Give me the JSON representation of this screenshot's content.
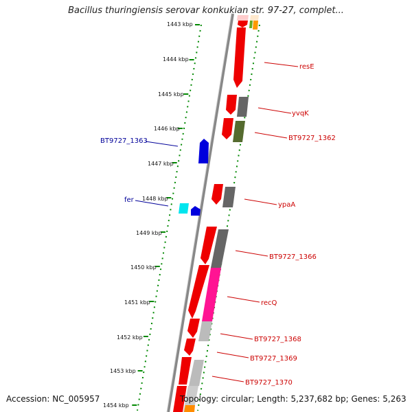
{
  "title": "Bacillus thuringiensis serovar konkukian str. 97-27, complet...",
  "accession": "Accession: NC_005957",
  "topology": "Topology: circular; Length: 5,237,682 bp; Genes: 5,263",
  "ticks": [
    "1443 kbp",
    "1444 kbp",
    "1445 kbp",
    "1446 kbp",
    "1447 kbp",
    "1448 kbp",
    "1449 kbp",
    "1450 kbp",
    "1451 kbp",
    "1452 kbp",
    "1453 kbp",
    "1454 kbp"
  ],
  "labels": {
    "resE": "resE",
    "yvqK": "yvqK",
    "bt1362": "BT9727_1362",
    "bt1363": "BT9727_1363",
    "fer": "fer",
    "ypaA": "ypaA",
    "bt1366": "BT9727_1366",
    "recQ": "recQ",
    "bt1368": "BT9727_1368",
    "bt1369": "BT9727_1369",
    "bt1370": "BT9727_1370"
  },
  "colors": {
    "forward_cds": "#ee0000",
    "reverse_cds": "#0000dd",
    "forward_label": "#cc0000",
    "reverse_label": "#000099",
    "backbone": "#888888",
    "tick": "#008800",
    "cog_grey": "#666666",
    "cog_olive": "#556b2f",
    "cog_pink": "#ff1493",
    "cog_light_grey": "#bbbbbb",
    "cog_cyan": "#00e5ee",
    "cog_orange": "#ff8c00"
  }
}
